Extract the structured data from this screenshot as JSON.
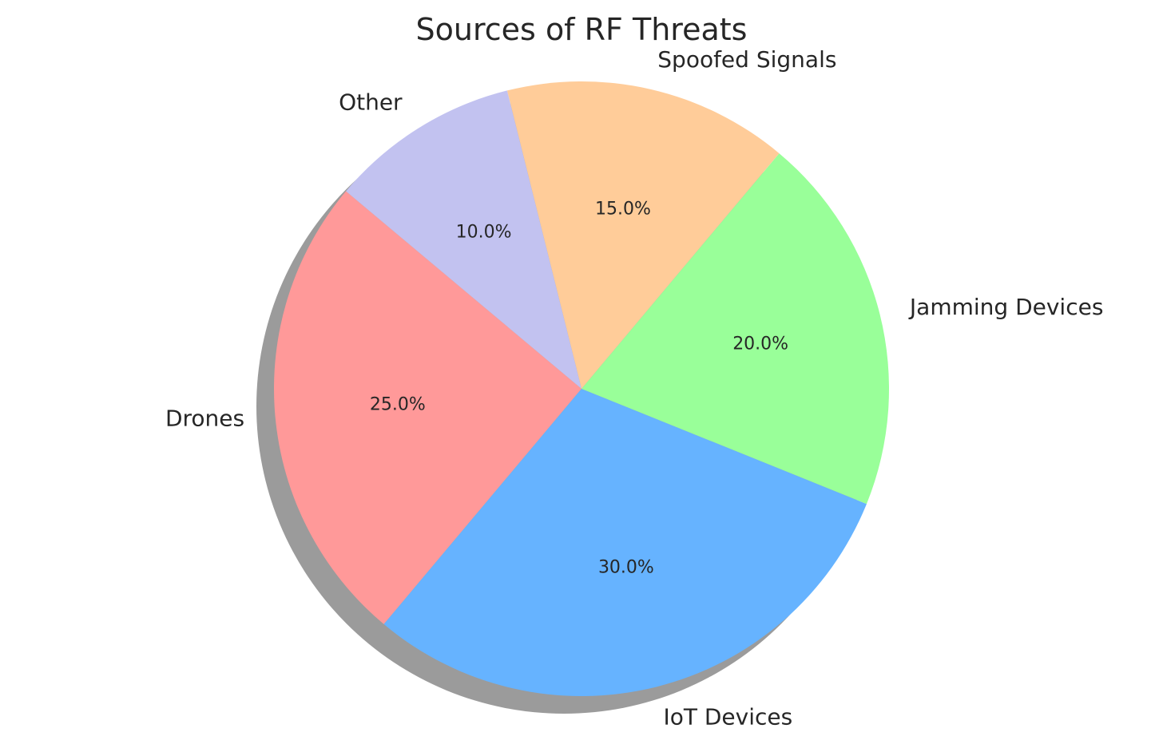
{
  "chart_data": {
    "type": "pie",
    "title": "Sources of RF Threats",
    "slices": [
      {
        "label": "Drones",
        "value": 25.0,
        "pct_label": "25.0%",
        "color": "#ff9999"
      },
      {
        "label": "IoT Devices",
        "value": 30.0,
        "pct_label": "30.0%",
        "color": "#66b3ff"
      },
      {
        "label": "Jamming Devices",
        "value": 20.0,
        "pct_label": "20.0%",
        "color": "#99ff99"
      },
      {
        "label": "Spoofed Signals",
        "value": 15.0,
        "pct_label": "15.0%",
        "color": "#ffcc99"
      },
      {
        "label": "Other",
        "value": 10.0,
        "pct_label": "10.0%",
        "color": "#c2c2f0"
      }
    ],
    "start_angle_deg": 140,
    "direction": "counterclockwise",
    "shadow": true,
    "shadow_color": "#8a8a8a",
    "background": "#ffffff",
    "legend": "none",
    "grid": false
  }
}
